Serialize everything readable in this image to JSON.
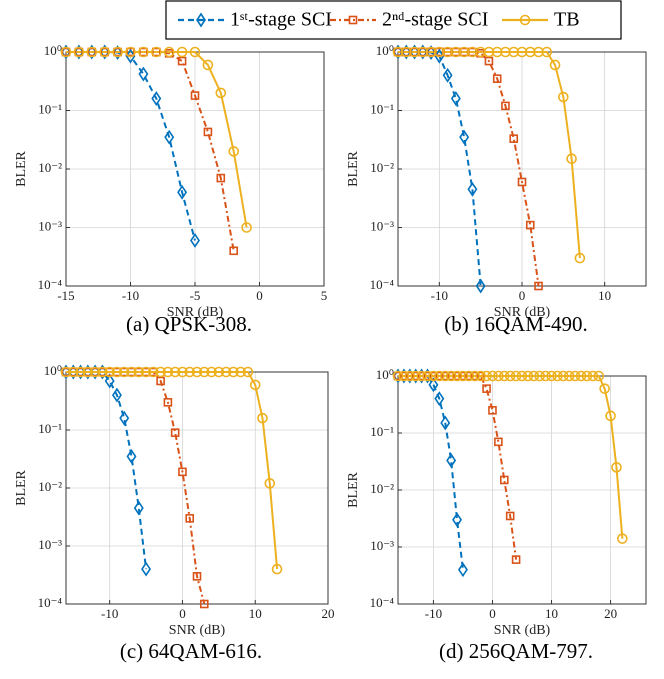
{
  "legend": {
    "series": [
      {
        "name": "1ˢᵗ-stage SCI",
        "color": "#0072BD",
        "marker": "diamond",
        "dash": "6,4"
      },
      {
        "name": "2ⁿᵈ-stage SCI",
        "color": "#D95319",
        "marker": "square",
        "dash": "6,3,2,3"
      },
      {
        "name": "TB",
        "color": "#EDB120",
        "marker": "circle",
        "dash": "none"
      }
    ]
  },
  "chart_data": [
    {
      "type": "line",
      "title": "(a) QPSK-308.",
      "xlabel": "SNR (dB)",
      "ylabel": "BLER",
      "yscale": "log",
      "grid": true,
      "xlim": [
        -15,
        5
      ],
      "xticks": [
        -15,
        -10,
        -5,
        0,
        5
      ],
      "ylim": [
        0.0001,
        1
      ],
      "yticks": [
        {
          "value": 0.0001,
          "label": "10⁻⁴"
        },
        {
          "value": 0.001,
          "label": "10⁻³"
        },
        {
          "value": 0.01,
          "label": "10⁻²"
        },
        {
          "value": 0.1,
          "label": "10⁻¹"
        },
        {
          "value": 1,
          "label": "10⁰"
        }
      ],
      "series": [
        {
          "x": [
            -15,
            -14,
            -13,
            -12,
            -11,
            -10,
            -9,
            -8,
            -7,
            -6,
            -5
          ],
          "values": [
            1,
            1,
            1,
            1,
            0.98,
            0.85,
            0.42,
            0.16,
            0.035,
            0.004,
            0.0006
          ]
        },
        {
          "x": [
            -15,
            -14,
            -13,
            -12,
            -11,
            -10,
            -9,
            -8,
            -7,
            -6,
            -5,
            -4,
            -3,
            -2
          ],
          "values": [
            1,
            1,
            1,
            1,
            1,
            1,
            1,
            1,
            0.95,
            0.7,
            0.18,
            0.043,
            0.007,
            0.0004
          ]
        },
        {
          "x": [
            -15,
            -14,
            -13,
            -12,
            -11,
            -10,
            -9,
            -8,
            -7,
            -6,
            -5,
            -4,
            -3,
            -2,
            -1
          ],
          "values": [
            1,
            1,
            1,
            1,
            1,
            1,
            1,
            1,
            1,
            1,
            1,
            0.6,
            0.2,
            0.02,
            0.001
          ]
        }
      ]
    },
    {
      "type": "line",
      "title": "(b) 16QAM-490.",
      "xlabel": "SNR (dB)",
      "ylabel": "BLER",
      "yscale": "log",
      "grid": true,
      "xlim": [
        -15,
        15
      ],
      "xticks": [
        -10,
        0,
        10
      ],
      "ylim": [
        0.0001,
        1
      ],
      "yticks": [
        {
          "value": 0.0001,
          "label": "10⁻⁴"
        },
        {
          "value": 0.001,
          "label": "10⁻³"
        },
        {
          "value": 0.01,
          "label": "10⁻²"
        },
        {
          "value": 0.1,
          "label": "10⁻¹"
        },
        {
          "value": 1,
          "label": "10⁰"
        }
      ],
      "series": [
        {
          "x": [
            -15,
            -14,
            -13,
            -12,
            -11,
            -10,
            -9,
            -8,
            -7,
            -6,
            -5
          ],
          "values": [
            1,
            1,
            1,
            1,
            0.98,
            0.85,
            0.4,
            0.16,
            0.035,
            0.0045,
            0.0001
          ]
        },
        {
          "x": [
            -15,
            -14,
            -13,
            -12,
            -11,
            -10,
            -9,
            -8,
            -7,
            -6,
            -5,
            -4,
            -3,
            -2,
            -1,
            0,
            1,
            2
          ],
          "values": [
            1,
            1,
            1,
            1,
            1,
            1,
            1,
            1,
            1,
            1,
            0.95,
            0.7,
            0.35,
            0.12,
            0.033,
            0.006,
            0.0011,
            0.0001
          ]
        },
        {
          "x": [
            -15,
            -14,
            -13,
            -12,
            -11,
            -10,
            -9,
            -8,
            -7,
            -6,
            -5,
            -4,
            -3,
            -2,
            -1,
            0,
            1,
            2,
            3,
            4,
            5,
            6,
            7
          ],
          "values": [
            1,
            1,
            1,
            1,
            1,
            1,
            1,
            1,
            1,
            1,
            1,
            1,
            1,
            1,
            1,
            1,
            1,
            1,
            1,
            0.6,
            0.17,
            0.015,
            0.0003
          ]
        }
      ]
    },
    {
      "type": "line",
      "title": "(c) 64QAM-616.",
      "xlabel": "SNR (dB)",
      "ylabel": "BLER",
      "yscale": "log",
      "grid": true,
      "xlim": [
        -16,
        20
      ],
      "xticks": [
        -10,
        0,
        10,
        20
      ],
      "ylim": [
        0.0001,
        1
      ],
      "yticks": [
        {
          "value": 0.0001,
          "label": "10⁻⁴"
        },
        {
          "value": 0.001,
          "label": "10⁻³"
        },
        {
          "value": 0.01,
          "label": "10⁻²"
        },
        {
          "value": 0.1,
          "label": "10⁻¹"
        },
        {
          "value": 1,
          "label": "10⁰"
        }
      ],
      "series": [
        {
          "x": [
            -16,
            -15,
            -14,
            -13,
            -12,
            -11,
            -10,
            -9,
            -8,
            -7,
            -6,
            -5
          ],
          "values": [
            1,
            1,
            1,
            1,
            1,
            1,
            0.7,
            0.4,
            0.16,
            0.035,
            0.0045,
            0.0004
          ]
        },
        {
          "x": [
            -16,
            -15,
            -14,
            -13,
            -12,
            -11,
            -10,
            -9,
            -8,
            -7,
            -6,
            -5,
            -4,
            -3,
            -2,
            -1,
            0,
            1,
            2,
            3
          ],
          "values": [
            1,
            1,
            1,
            1,
            1,
            1,
            1,
            1,
            1,
            1,
            1,
            1,
            1,
            0.7,
            0.3,
            0.09,
            0.019,
            0.003,
            0.0003,
            0.0001
          ]
        },
        {
          "x": [
            -16,
            -15,
            -14,
            -13,
            -12,
            -11,
            -10,
            -9,
            -8,
            -7,
            -6,
            -5,
            -4,
            -3,
            -2,
            -1,
            0,
            1,
            2,
            3,
            4,
            5,
            6,
            7,
            8,
            9,
            10,
            11,
            12,
            13
          ],
          "values": [
            1,
            1,
            1,
            1,
            1,
            1,
            1,
            1,
            1,
            1,
            1,
            1,
            1,
            1,
            1,
            1,
            1,
            1,
            1,
            1,
            1,
            1,
            1,
            1,
            1,
            1,
            0.6,
            0.16,
            0.012,
            0.0004
          ]
        }
      ]
    },
    {
      "type": "line",
      "title": "(d) 256QAM-797.",
      "xlabel": "SNR (dB)",
      "ylabel": "BLER",
      "yscale": "log",
      "grid": true,
      "xlim": [
        -16,
        26
      ],
      "xticks": [
        -10,
        0,
        10,
        20
      ],
      "ylim": [
        0.0001,
        1
      ],
      "yticks": [
        {
          "value": 0.0001,
          "label": "10⁻⁴"
        },
        {
          "value": 0.001,
          "label": "10⁻³"
        },
        {
          "value": 0.01,
          "label": "10⁻²"
        },
        {
          "value": 0.1,
          "label": "10⁻¹"
        },
        {
          "value": 1,
          "label": "10⁰"
        }
      ],
      "series": [
        {
          "x": [
            -16,
            -15,
            -14,
            -13,
            -12,
            -11,
            -10,
            -9,
            -8,
            -7,
            -6,
            -5
          ],
          "values": [
            1,
            1,
            1,
            1,
            1,
            1,
            0.7,
            0.4,
            0.15,
            0.033,
            0.003,
            0.0004
          ]
        },
        {
          "x": [
            -16,
            -15,
            -14,
            -13,
            -12,
            -11,
            -10,
            -9,
            -8,
            -7,
            -6,
            -5,
            -4,
            -3,
            -2,
            -1,
            0,
            1,
            2,
            3,
            4
          ],
          "values": [
            1,
            1,
            1,
            1,
            1,
            1,
            1,
            1,
            1,
            1,
            1,
            1,
            1,
            1,
            1,
            0.6,
            0.25,
            0.07,
            0.015,
            0.0035,
            0.0006
          ]
        },
        {
          "x": [
            -16,
            -15,
            -14,
            -13,
            -12,
            -11,
            -10,
            -9,
            -8,
            -7,
            -6,
            -5,
            -4,
            -3,
            -2,
            -1,
            0,
            1,
            2,
            3,
            4,
            5,
            6,
            7,
            8,
            9,
            10,
            11,
            12,
            13,
            14,
            15,
            16,
            17,
            18,
            19,
            20,
            21,
            22
          ],
          "values": [
            1,
            1,
            1,
            1,
            1,
            1,
            1,
            1,
            1,
            1,
            1,
            1,
            1,
            1,
            1,
            1,
            1,
            1,
            1,
            1,
            1,
            1,
            1,
            1,
            1,
            1,
            1,
            1,
            1,
            1,
            1,
            1,
            1,
            1,
            1,
            0.6,
            0.2,
            0.025,
            0.0014
          ]
        }
      ]
    }
  ]
}
